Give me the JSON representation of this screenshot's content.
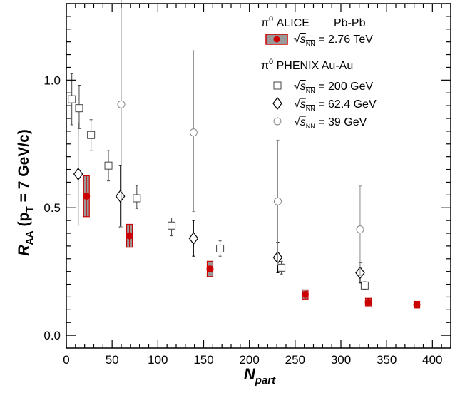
{
  "chart_data": {
    "type": "scatter",
    "xlabel": {
      "main": "N",
      "sub": "part"
    },
    "ylabel": {
      "main": "R",
      "sub": "AA",
      "rest": " (p",
      "sub2": "T",
      "rest2": " = 7 GeV/c)"
    },
    "xlim": [
      0,
      420
    ],
    "ylim": [
      -0.05,
      1.3
    ],
    "xticks": [
      0,
      50,
      100,
      150,
      200,
      250,
      300,
      350,
      400
    ],
    "yticks": [
      0.0,
      0.5,
      1.0
    ],
    "ytick_labels": [
      "0.0",
      "0.5",
      "1.0"
    ],
    "series": [
      {
        "key": "alice",
        "marker": "filled-circle",
        "color": "#cc0000",
        "points": [
          {
            "x": 22,
            "y": 0.545,
            "err": 0.08
          },
          {
            "x": 69,
            "y": 0.39,
            "err": 0.045
          },
          {
            "x": 157,
            "y": 0.26,
            "err": 0.03
          },
          {
            "x": 261,
            "y": 0.16,
            "err": 0.018
          },
          {
            "x": 330,
            "y": 0.13,
            "err": 0.015
          },
          {
            "x": 383,
            "y": 0.12,
            "err": 0.013
          }
        ]
      },
      {
        "key": "phenix200",
        "marker": "open-square",
        "color": "#444444",
        "points": [
          {
            "x": 6,
            "y": 0.925,
            "err_lo": 0.1,
            "err_hi": 0.1
          },
          {
            "x": 14,
            "y": 0.89,
            "err_lo": 0.08,
            "err_hi": 0.09
          },
          {
            "x": 27,
            "y": 0.785,
            "err_lo": 0.06,
            "err_hi": 0.06
          },
          {
            "x": 46,
            "y": 0.665,
            "err_lo": 0.06,
            "err_hi": 0.06
          },
          {
            "x": 77,
            "y": 0.537,
            "err_lo": 0.04,
            "err_hi": 0.05
          },
          {
            "x": 115,
            "y": 0.43,
            "err_lo": 0.04,
            "err_hi": 0.03
          },
          {
            "x": 168,
            "y": 0.34,
            "err_lo": 0.03,
            "err_hi": 0.03
          },
          {
            "x": 235,
            "y": 0.265,
            "err_lo": 0.025,
            "err_hi": 0.025
          },
          {
            "x": 326,
            "y": 0.195,
            "err_lo": 0.015,
            "err_hi": 0.015
          }
        ]
      },
      {
        "key": "phenix62",
        "marker": "open-diamond",
        "color": "#000000",
        "points": [
          {
            "x": 13,
            "y": 0.632,
            "err_lo": 0.2,
            "err_hi": 0.2
          },
          {
            "x": 59,
            "y": 0.545,
            "err_lo": 0.12,
            "err_hi": 0.12
          },
          {
            "x": 139,
            "y": 0.38,
            "err_lo": 0.07,
            "err_hi": 0.07
          },
          {
            "x": 231,
            "y": 0.305,
            "err_lo": 0.06,
            "err_hi": 0.06
          },
          {
            "x": 321,
            "y": 0.245,
            "err_lo": 0.04,
            "err_hi": 0.04
          }
        ]
      },
      {
        "key": "phenix39",
        "marker": "open-circle",
        "color": "#888888",
        "points": [
          {
            "x": 60,
            "y": 0.905,
            "err_lo": 0.48,
            "err_hi": 0.45
          },
          {
            "x": 139,
            "y": 0.795,
            "err_lo": 0.31,
            "err_hi": 0.32
          },
          {
            "x": 231,
            "y": 0.525,
            "err_lo": 0.25,
            "err_hi": 0.24
          },
          {
            "x": 321,
            "y": 0.415,
            "err_lo": 0.18,
            "err_hi": 0.17
          }
        ]
      }
    ],
    "legend": {
      "placement": "top-right",
      "alice_header": {
        "prefix": "π",
        "sup": "0",
        "name": " ALICE",
        "system": "Pb-Pb"
      },
      "phenix_header": {
        "prefix": "π",
        "sup": "0",
        "name": " PHENIX Au-Au"
      },
      "entries": [
        {
          "series": "alice",
          "sqrt": "√",
          "s": "s",
          "sub": "NN",
          "value": " = 2.76 TeV"
        },
        {
          "series": "phenix200",
          "sqrt": "√",
          "s": "s",
          "sub": "NN",
          "value": " = 200 GeV"
        },
        {
          "series": "phenix62",
          "sqrt": "√",
          "s": "s",
          "sub": "NN",
          "value": " = 62.4 GeV"
        },
        {
          "series": "phenix39",
          "sqrt": "√",
          "s": "s",
          "sub": "NN",
          "value": " = 39 GeV"
        }
      ]
    }
  }
}
